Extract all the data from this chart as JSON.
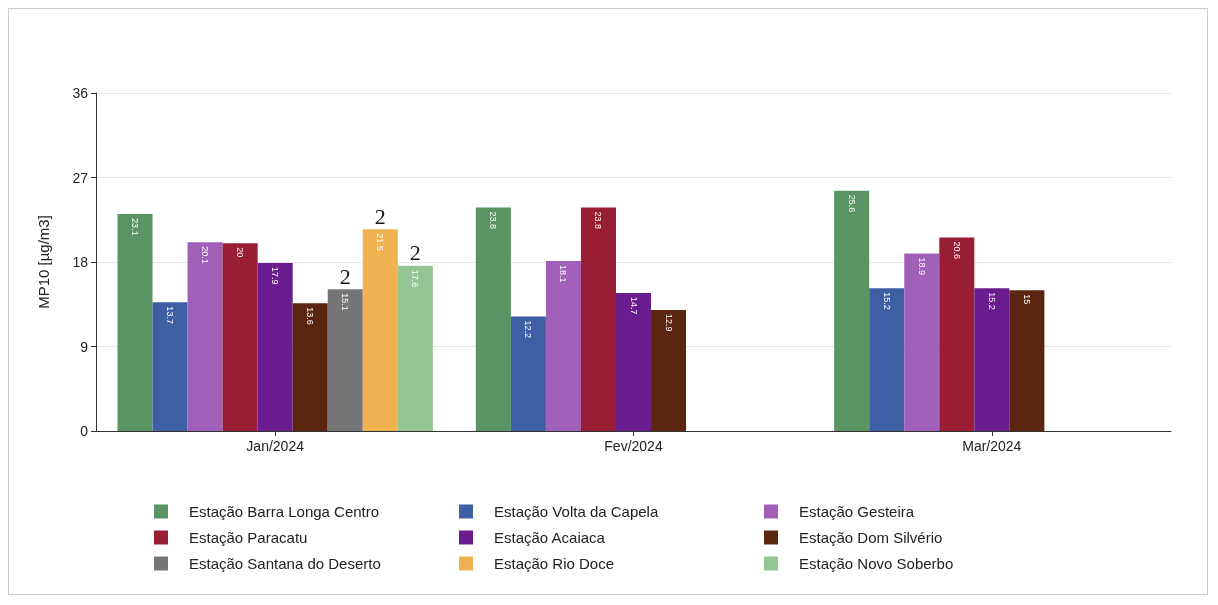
{
  "chart_data": {
    "type": "bar",
    "ylabel": "MP10 [µg/m3]",
    "categories": [
      "Jan/2024",
      "Fev/2024",
      "Mar/2024"
    ],
    "series": [
      {
        "name": "Estação Barra Longa Centro",
        "color": "#5a9463",
        "values": [
          23.1,
          23.8,
          25.6
        ]
      },
      {
        "name": "Estação Volta da Capela",
        "color": "#3f5fa5",
        "values": [
          13.7,
          12.2,
          15.2
        ]
      },
      {
        "name": "Estação Gesteira",
        "color": "#a060b8",
        "values": [
          20.1,
          18.1,
          18.9
        ]
      },
      {
        "name": "Estação Paracatu",
        "color": "#981d35",
        "values": [
          20,
          23.8,
          20.6
        ]
      },
      {
        "name": "Estação Acaiaca",
        "color": "#6a1d8f",
        "values": [
          17.9,
          14.7,
          15.2
        ]
      },
      {
        "name": "Estação Dom Silvério",
        "color": "#5a2610",
        "values": [
          13.6,
          12.9,
          15
        ]
      },
      {
        "name": "Estação Santana do Deserto",
        "color": "#767676",
        "values": [
          15.1,
          null,
          null
        ]
      },
      {
        "name": "Estação Rio Doce",
        "color": "#f0b250",
        "values": [
          21.5,
          null,
          null
        ]
      },
      {
        "name": "Estação Novo Soberbo",
        "color": "#94c694",
        "values": [
          17.6,
          null,
          null
        ]
      }
    ],
    "annotations": [
      "2",
      "2",
      "2"
    ],
    "ylim": [
      0,
      36
    ],
    "yticks": [
      0,
      9,
      18,
      27,
      36
    ],
    "grid": "y",
    "legend": "bottom",
    "data_labels": true
  }
}
